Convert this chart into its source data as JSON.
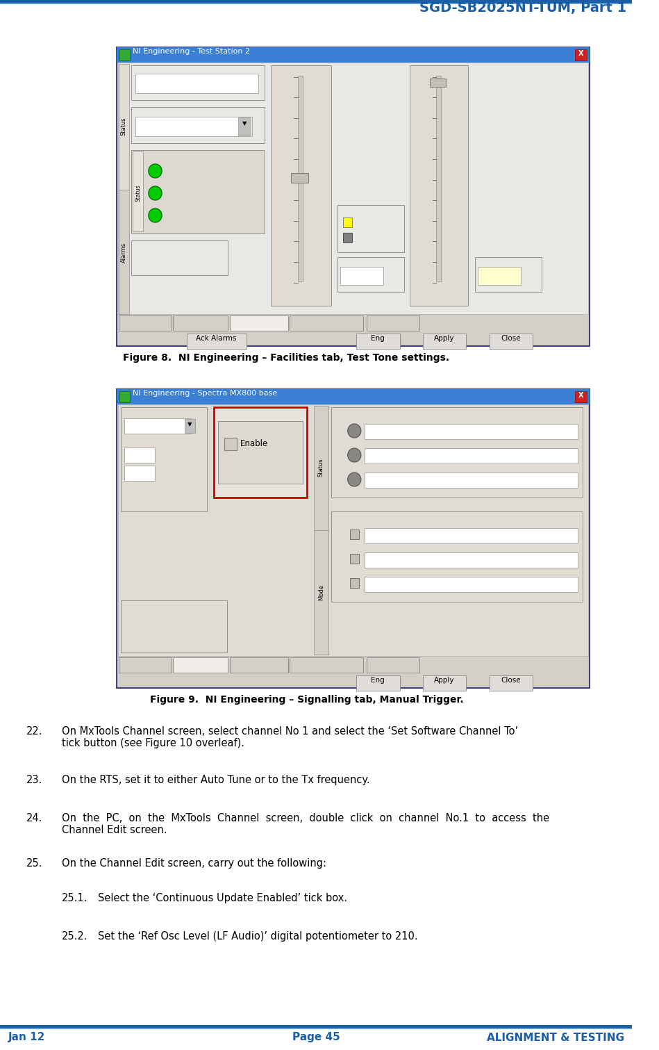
{
  "title_text": "SGD-SB2025NT-TUM, Part 1",
  "title_color": "#1b5ea6",
  "header_line1_color": "#1b5ea6",
  "header_line2_color": "#5b9bd5",
  "footer_left": "Jan 12",
  "footer_center": "Page 45",
  "footer_right": "ALIGNMENT & TESTING",
  "footer_color": "#1b5ea6",
  "fig1_caption": "Figure 8.  NI Engineering – Facilities tab, Test Tone settings.",
  "fig2_caption": "Figure 9.  NI Engineering – Signalling tab, Manual Trigger.",
  "body_items": [
    {
      "num": "22.",
      "col1": 0.042,
      "col2": 0.098,
      "text": "On MxTools Channel screen, select channel No 1 and select the ‘Set Software Channel To’\ntick button (see Figure 10 overleaf)."
    },
    {
      "num": "23.",
      "col1": 0.042,
      "col2": 0.098,
      "text": "On the RTS, set it to either Auto Tune or to the Tx frequency."
    },
    {
      "num": "24.",
      "col1": 0.042,
      "col2": 0.098,
      "text": "On  the  PC,  on  the  MxTools  Channel  screen,  double  click  on  channel  No.1  to  access  the\nChannel Edit screen."
    },
    {
      "num": "25.",
      "col1": 0.042,
      "col2": 0.098,
      "text": "On the Channel Edit screen, carry out the following:"
    },
    {
      "num": "25.1.",
      "col1": 0.098,
      "col2": 0.155,
      "text": "Select the ‘Continuous Update Enabled’ tick box."
    },
    {
      "num": "25.2.",
      "col1": 0.098,
      "col2": 0.155,
      "text": "Set the ‘Ref Osc Level (LF Audio)’ digital potentiometer to 210."
    }
  ],
  "bg_color": "#ffffff",
  "win_bg": "#d4d0c8",
  "win_content_bg": "#ddd9d0",
  "win_titlebar": "#3a7fd4",
  "win_border": "#0000aa"
}
